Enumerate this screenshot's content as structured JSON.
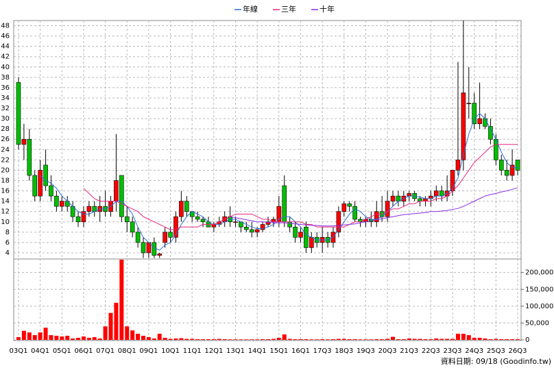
{
  "chart_data": {
    "type": "candlestick",
    "categories": [
      "03Q1",
      null,
      null,
      null,
      "04Q1",
      null,
      null,
      null,
      "05Q1",
      null,
      null,
      null,
      "06Q1",
      null,
      null,
      null,
      "07Q1",
      null,
      null,
      null,
      "08Q1",
      null,
      null,
      null,
      "09Q1",
      null,
      null,
      null,
      "10Q1",
      null,
      null,
      null,
      "11Q1",
      null,
      null,
      null,
      "12Q1",
      null,
      null,
      null,
      "13Q1",
      null,
      null,
      null,
      "14Q1",
      null,
      null,
      null,
      "15Q1",
      null,
      null,
      null,
      "16Q1",
      null,
      null,
      null,
      "17Q3",
      null,
      null,
      null,
      "18Q3",
      null,
      null,
      null,
      "19Q3",
      null,
      null,
      null,
      "20Q3",
      null,
      null,
      null,
      "21Q3",
      null,
      null,
      null,
      "22Q3",
      null,
      null,
      null,
      "23Q3",
      null,
      null,
      null,
      "24Q3",
      null,
      null,
      null,
      "25Q3",
      null,
      null,
      null,
      "26Q3"
    ],
    "open": [
      37,
      25,
      26,
      19,
      15,
      21,
      17,
      15,
      13,
      14,
      13,
      11,
      10,
      12,
      13,
      12,
      13,
      12,
      14,
      19,
      11,
      10,
      8,
      6,
      4,
      6,
      3.5,
      6,
      8,
      7,
      11,
      14,
      12,
      11,
      10.5,
      10,
      9,
      9.5,
      10,
      11,
      10,
      10,
      9,
      8.5,
      8,
      8.5,
      9.5,
      10,
      10,
      17,
      10,
      9,
      7,
      9,
      5,
      7,
      6,
      7,
      6,
      8,
      12,
      13.5,
      13,
      10.5,
      10,
      10.5,
      10,
      12,
      11,
      14,
      15,
      14,
      15,
      15.5,
      14.5,
      14,
      14.5,
      15,
      16,
      15,
      16,
      20,
      22,
      33,
      33,
      29,
      30,
      28.5,
      26,
      22,
      20,
      19,
      22
    ],
    "high": [
      38,
      29,
      28,
      20,
      22,
      24,
      19,
      16,
      15,
      15,
      14,
      12,
      13,
      14,
      14,
      15,
      16,
      15,
      27,
      19,
      13,
      11,
      9,
      7,
      6,
      7,
      4,
      9,
      9,
      12,
      16,
      15,
      12,
      12,
      11,
      11,
      10,
      11,
      12,
      13,
      11,
      10,
      10,
      10,
      9,
      10,
      11,
      11,
      15,
      19,
      11,
      10,
      9,
      10,
      8,
      8,
      9,
      8,
      9,
      13,
      14,
      14,
      14,
      11,
      11,
      12,
      14,
      15,
      16,
      16,
      16,
      16,
      16,
      16,
      15,
      15,
      16,
      17,
      17,
      19,
      20,
      41,
      49,
      40,
      35,
      37,
      31,
      30,
      27,
      23,
      22,
      24,
      22
    ],
    "low": [
      24,
      22,
      18,
      14,
      14,
      16,
      14,
      12,
      12,
      12,
      10,
      9,
      9,
      11,
      11,
      10,
      11,
      11,
      12,
      10,
      8,
      7,
      5,
      3,
      3,
      3,
      3,
      5,
      6,
      6,
      10,
      11,
      10,
      10,
      9,
      9,
      8,
      9,
      9,
      9,
      9,
      8,
      8,
      7,
      7,
      8,
      9,
      9,
      9,
      9,
      8,
      6,
      6,
      4,
      4,
      5,
      4,
      5,
      5,
      7,
      11,
      12,
      10,
      9,
      9,
      9,
      9,
      10,
      10,
      13,
      13,
      13,
      14,
      14,
      13,
      13,
      13,
      14,
      14,
      14,
      15,
      19,
      20,
      30,
      28,
      28,
      28,
      25,
      21,
      19,
      18,
      18,
      19
    ],
    "close": [
      25,
      26,
      19,
      15,
      20,
      17,
      15,
      13,
      14,
      13,
      11,
      10,
      12,
      13,
      12,
      13,
      12,
      14,
      18,
      11,
      10,
      8,
      6,
      4,
      6,
      3.5,
      3.8,
      8,
      7,
      11,
      14,
      12,
      11,
      10.5,
      10,
      9,
      9.5,
      10,
      11,
      10,
      10,
      9,
      8.5,
      8,
      8.5,
      9.5,
      10,
      10.5,
      13,
      10,
      9,
      7,
      8,
      5,
      7,
      6,
      7,
      6,
      8,
      12,
      13.5,
      13,
      10.5,
      10,
      10.5,
      10,
      12,
      11,
      14,
      15,
      14,
      15,
      15.5,
      14.5,
      14,
      14.5,
      15,
      16,
      15,
      16,
      20,
      22,
      35,
      33,
      29,
      30,
      28.5,
      26,
      22,
      20,
      19,
      21,
      20
    ],
    "up_color": "#ff0000",
    "down_color": "#00c000",
    "ylim": [
      2.8,
      49
    ],
    "yticks": [
      4,
      6,
      8,
      10,
      12,
      14,
      16,
      18,
      20,
      22,
      24,
      26,
      28,
      30,
      32,
      34,
      36,
      38,
      40,
      42,
      44,
      46,
      48
    ],
    "grid": true,
    "series": [
      {
        "name": "年線",
        "color": "#2a6fd6",
        "values": [
          null,
          null,
          null,
          null,
          19,
          18,
          17.5,
          16.5,
          15,
          14,
          13,
          12,
          11.5,
          11.5,
          12,
          12.5,
          12.5,
          13,
          14,
          14,
          13,
          11.5,
          9,
          7,
          6,
          5,
          4.5,
          5.5,
          6,
          7.5,
          9.5,
          11,
          12,
          11.5,
          11,
          10,
          9.5,
          9.5,
          10,
          10.5,
          10.5,
          10,
          9.5,
          9,
          8.7,
          8.7,
          9,
          9.5,
          10.5,
          11,
          11,
          10,
          9,
          7.5,
          7,
          6.5,
          6.5,
          6.5,
          7,
          8.5,
          10,
          11.5,
          12.5,
          12,
          11,
          10.5,
          10.5,
          11,
          12,
          13,
          14,
          14.5,
          15,
          15,
          14.8,
          14.5,
          14.5,
          15,
          15,
          15.5,
          16.5,
          18.5,
          23,
          27,
          30,
          31,
          30,
          28,
          26,
          23.5,
          21.5,
          20.5,
          20.5
        ]
      },
      {
        "name": "三年",
        "color": "#e8247f",
        "values": [
          null,
          null,
          null,
          null,
          null,
          null,
          null,
          null,
          null,
          null,
          null,
          null,
          16.5,
          15.5,
          14.5,
          14,
          14,
          14,
          14,
          13.5,
          13,
          12.5,
          12,
          11,
          10.5,
          10,
          9.5,
          9,
          8.5,
          8.5,
          9,
          9,
          9,
          9,
          9.5,
          9.5,
          9.5,
          10,
          10.5,
          11,
          11.5,
          11.5,
          11.5,
          11.5,
          11,
          10.5,
          10.5,
          10,
          10,
          10,
          10,
          10,
          10,
          9.5,
          9.5,
          9,
          9,
          9,
          9,
          9,
          9,
          9.5,
          10,
          10,
          10.5,
          11,
          11.5,
          11.5,
          12,
          12.5,
          12.5,
          13,
          13.5,
          13.5,
          14,
          14,
          14,
          14.5,
          14.5,
          15,
          16,
          17,
          18.5,
          20,
          21.5,
          22.5,
          23.5,
          24.5,
          25,
          25,
          25,
          25,
          25
        ]
      },
      {
        "name": "十年",
        "color": "#8a2be2",
        "values": [
          null,
          null,
          null,
          null,
          null,
          null,
          null,
          null,
          null,
          null,
          null,
          null,
          null,
          null,
          null,
          null,
          null,
          null,
          null,
          null,
          null,
          null,
          null,
          null,
          null,
          null,
          null,
          null,
          null,
          null,
          null,
          null,
          null,
          null,
          null,
          null,
          null,
          null,
          null,
          11,
          10.8,
          10.6,
          10.4,
          10.2,
          10,
          10,
          9.9,
          9.8,
          9.8,
          9.8,
          9.7,
          9.6,
          9.5,
          9.4,
          9.3,
          9.3,
          9.2,
          9.2,
          9.2,
          9.3,
          9.4,
          9.5,
          9.6,
          9.8,
          10,
          10.2,
          10.4,
          10.6,
          10.8,
          11,
          11.2,
          11.4,
          11.5,
          11.6,
          11.7,
          11.8,
          12,
          12,
          12.1,
          12.2,
          12.4,
          12.6,
          13,
          13.5,
          14,
          14.5,
          15,
          15.3,
          15.5,
          15.8,
          16,
          16.3,
          16.6
        ]
      }
    ],
    "volume": {
      "color": "#ff0000",
      "values": [
        8000,
        27000,
        22000,
        14000,
        22000,
        36000,
        14000,
        12000,
        10000,
        12000,
        4000,
        6000,
        10000,
        6000,
        8000,
        4000,
        40000,
        80000,
        110000,
        238000,
        40000,
        28000,
        18000,
        12000,
        8000,
        4000,
        18000,
        6000,
        3000,
        4000,
        5000,
        3000,
        3000,
        2000,
        2000,
        2000,
        2000,
        3000,
        2000,
        1500,
        1500,
        1500,
        1500,
        1500,
        1500,
        2000,
        2000,
        3000,
        6000,
        16000,
        3000,
        2000,
        2000,
        2000,
        1500,
        1500,
        2000,
        1500,
        2000,
        3000,
        3000,
        2000,
        2000,
        1500,
        1500,
        1500,
        2000,
        2000,
        3000,
        9000,
        2000,
        2000,
        4000,
        3000,
        3000,
        2000,
        2000,
        4000,
        3000,
        3000,
        3000,
        18000,
        18000,
        14000,
        6000,
        6000,
        4000,
        2000,
        3000,
        2000,
        2000,
        2000,
        2000
      ],
      "ylim": [
        0,
        240000
      ],
      "yticks": [
        0,
        {
          "value": 50000,
          "label": "50,000"
        },
        {
          "value": 100000,
          "label": "100,000"
        },
        {
          "value": 150000,
          "label": "150,000"
        },
        {
          "value": 200000,
          "label": "200,000"
        }
      ]
    },
    "source": "資料日期: 09/18 (Goodinfo.tw)"
  }
}
